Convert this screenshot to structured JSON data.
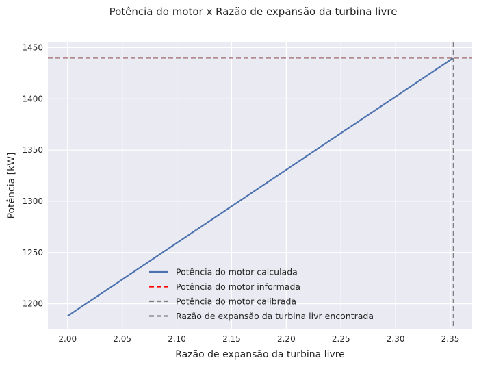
{
  "chart_data": {
    "type": "line",
    "title": "Potência do motor x Razão de expansão da turbina livre",
    "xlabel": "Razão de expansão da turbina livre",
    "ylabel": "Potência [kW]",
    "xlim": [
      1.982,
      2.37
    ],
    "ylim": [
      1175,
      1455
    ],
    "xticks": [
      "2.00",
      "2.05",
      "2.10",
      "2.15",
      "2.20",
      "2.25",
      "2.30",
      "2.35"
    ],
    "xtick_values": [
      2.0,
      2.05,
      2.1,
      2.15,
      2.2,
      2.25,
      2.3,
      2.35
    ],
    "yticks": [
      "1200",
      "1250",
      "1300",
      "1350",
      "1400",
      "1450"
    ],
    "ytick_values": [
      1200,
      1250,
      1300,
      1350,
      1400,
      1450
    ],
    "grid": true,
    "legend_position": "lower-center",
    "series": [
      {
        "name": "Potência do motor calculada",
        "style": "solid",
        "color": "#4c72b0",
        "x": [
          2.0,
          2.353
        ],
        "y": [
          1188,
          1440
        ]
      },
      {
        "name": "Potência do motor informada",
        "style": "dashed",
        "color": "#ff0000",
        "hline": 1440
      },
      {
        "name": "Potência do motor calibrada",
        "style": "dashed",
        "color": "#808080",
        "hline": 1440
      },
      {
        "name": "Razão de expansão da turbina livr encontrada",
        "style": "dashed",
        "color": "#808080",
        "vline": 2.353
      }
    ],
    "colors": {
      "background": "#eaeaf2",
      "grid": "#ffffff"
    }
  }
}
